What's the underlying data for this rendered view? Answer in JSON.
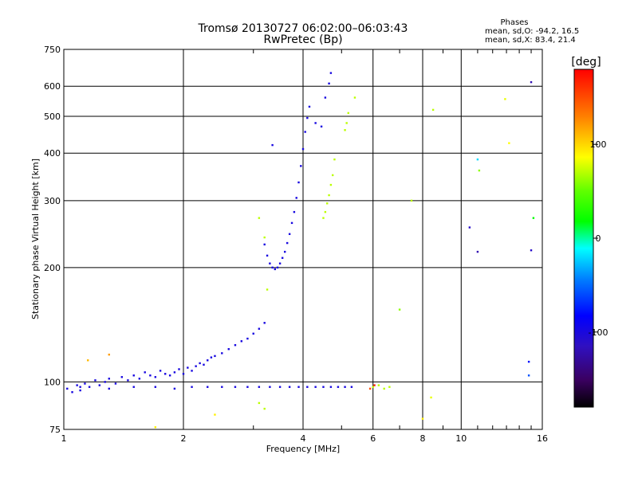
{
  "chart_data": {
    "type": "scatter",
    "title": "Tromsø 20130727 06:02:00–06:03:43",
    "subtitle": "RwPretec (Bp)",
    "xlabel": "Frequency [MHz]",
    "ylabel": "Stationary phase Virtual Height [km]",
    "x_scale": "log",
    "y_scale": "log",
    "xlim": [
      1,
      16
    ],
    "ylim": [
      75,
      750
    ],
    "x_ticks": [
      1,
      2,
      4,
      6,
      8,
      10,
      16
    ],
    "y_ticks": [
      75,
      100,
      200,
      300,
      400,
      500,
      600,
      750
    ],
    "grid": true,
    "phases_title": "Phases",
    "phases_lines": [
      "mean, sd,O:  -94.2, 16.5",
      "mean, sd,X:   83.4, 21.4"
    ],
    "colorbar": {
      "label": "[deg]",
      "range": [
        -180,
        180
      ],
      "ticks": [
        -100,
        0,
        100
      ]
    },
    "series": [
      {
        "color_phase": -100,
        "points": [
          [
            1.02,
            96
          ],
          [
            1.05,
            94
          ],
          [
            1.08,
            98
          ],
          [
            1.1,
            95
          ],
          [
            1.13,
            99
          ],
          [
            1.16,
            97
          ],
          [
            1.2,
            101
          ],
          [
            1.23,
            98
          ],
          [
            1.27,
            100
          ],
          [
            1.3,
            102
          ],
          [
            1.35,
            99
          ],
          [
            1.4,
            103
          ],
          [
            1.45,
            101
          ],
          [
            1.5,
            104
          ],
          [
            1.55,
            102
          ],
          [
            1.6,
            106
          ],
          [
            1.65,
            104
          ],
          [
            1.7,
            103
          ],
          [
            1.75,
            107
          ],
          [
            1.8,
            105
          ],
          [
            1.85,
            104
          ],
          [
            1.9,
            106
          ],
          [
            1.95,
            108
          ],
          [
            2.0,
            105
          ],
          [
            2.05,
            109
          ],
          [
            2.1,
            107
          ],
          [
            2.15,
            110
          ],
          [
            2.2,
            112
          ],
          [
            2.25,
            111
          ],
          [
            2.3,
            114
          ],
          [
            2.35,
            116
          ],
          [
            2.4,
            117
          ],
          [
            2.5,
            119
          ],
          [
            2.6,
            122
          ],
          [
            2.7,
            125
          ],
          [
            2.8,
            128
          ],
          [
            2.9,
            130
          ],
          [
            3.0,
            134
          ],
          [
            3.1,
            138
          ],
          [
            3.2,
            143
          ],
          [
            1.1,
            97
          ],
          [
            1.3,
            96
          ],
          [
            1.5,
            97
          ],
          [
            1.7,
            97
          ],
          [
            1.9,
            96
          ],
          [
            2.1,
            97
          ],
          [
            2.3,
            97
          ],
          [
            2.5,
            97
          ],
          [
            2.7,
            97
          ],
          [
            2.9,
            97
          ],
          [
            3.1,
            97
          ],
          [
            3.3,
            97
          ],
          [
            3.5,
            97
          ],
          [
            3.7,
            97
          ],
          [
            3.9,
            97
          ],
          [
            4.1,
            97
          ],
          [
            4.3,
            97
          ],
          [
            4.5,
            97
          ],
          [
            4.7,
            97
          ],
          [
            4.9,
            97
          ],
          [
            5.1,
            97
          ],
          [
            5.3,
            97
          ],
          [
            3.2,
            230
          ],
          [
            3.25,
            215
          ],
          [
            3.3,
            205
          ],
          [
            3.35,
            200
          ],
          [
            3.4,
            198
          ],
          [
            3.45,
            200
          ],
          [
            3.5,
            205
          ],
          [
            3.55,
            212
          ],
          [
            3.6,
            220
          ],
          [
            3.65,
            232
          ],
          [
            3.7,
            245
          ],
          [
            3.75,
            262
          ],
          [
            3.8,
            280
          ],
          [
            3.85,
            305
          ],
          [
            3.9,
            335
          ],
          [
            3.95,
            370
          ],
          [
            4.0,
            410
          ],
          [
            4.05,
            455
          ],
          [
            4.1,
            495
          ],
          [
            4.15,
            530
          ],
          [
            4.3,
            480
          ],
          [
            4.45,
            470
          ],
          [
            4.55,
            560
          ],
          [
            4.65,
            610
          ],
          [
            4.7,
            650
          ],
          [
            3.35,
            420
          ]
        ]
      },
      {
        "color_phase": 70,
        "points": [
          [
            4.5,
            270
          ],
          [
            4.55,
            280
          ],
          [
            4.6,
            295
          ],
          [
            4.65,
            310
          ],
          [
            4.7,
            330
          ],
          [
            4.75,
            350
          ],
          [
            4.8,
            385
          ],
          [
            5.1,
            460
          ],
          [
            5.15,
            480
          ],
          [
            5.2,
            510
          ],
          [
            5.4,
            560
          ],
          [
            3.1,
            270
          ],
          [
            3.2,
            240
          ],
          [
            3.25,
            175
          ],
          [
            3.1,
            88
          ],
          [
            3.2,
            85
          ],
          [
            6.0,
            97
          ],
          [
            6.2,
            98
          ],
          [
            6.4,
            96
          ],
          [
            6.6,
            97
          ],
          [
            8.5,
            520
          ],
          [
            7.5,
            300
          ]
        ]
      }
    ],
    "scattered_points": [
      {
        "x": 11.0,
        "y": 385,
        "phase": -20
      },
      {
        "x": 12.9,
        "y": 555,
        "phase": 80
      },
      {
        "x": 13.2,
        "y": 425,
        "phase": 85
      },
      {
        "x": 15.0,
        "y": 615,
        "phase": -120
      },
      {
        "x": 15.0,
        "y": 222,
        "phase": -110
      },
      {
        "x": 15.2,
        "y": 270,
        "phase": 20
      },
      {
        "x": 14.8,
        "y": 113,
        "phase": -80
      },
      {
        "x": 14.8,
        "y": 104,
        "phase": -60
      },
      {
        "x": 10.5,
        "y": 255,
        "phase": -110
      },
      {
        "x": 11.0,
        "y": 220,
        "phase": -120
      },
      {
        "x": 11.1,
        "y": 360,
        "phase": 60
      },
      {
        "x": 6.05,
        "y": 98,
        "phase": 170
      },
      {
        "x": 5.9,
        "y": 96,
        "phase": 150
      },
      {
        "x": 8.0,
        "y": 80,
        "phase": 90
      },
      {
        "x": 8.4,
        "y": 91,
        "phase": 80
      },
      {
        "x": 1.15,
        "y": 114,
        "phase": 110
      },
      {
        "x": 1.3,
        "y": 118,
        "phase": 120
      },
      {
        "x": 1.7,
        "y": 76,
        "phase": 90
      },
      {
        "x": 2.4,
        "y": 82,
        "phase": 90
      },
      {
        "x": 7.0,
        "y": 155,
        "phase": 60
      }
    ]
  }
}
